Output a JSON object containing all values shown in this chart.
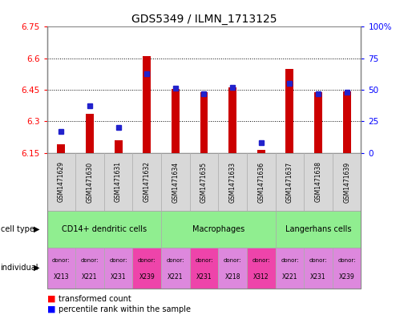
{
  "title": "GDS5349 / ILMN_1713125",
  "samples": [
    "GSM1471629",
    "GSM1471630",
    "GSM1471631",
    "GSM1471632",
    "GSM1471634",
    "GSM1471635",
    "GSM1471633",
    "GSM1471636",
    "GSM1471637",
    "GSM1471638",
    "GSM1471639"
  ],
  "transformed_count": [
    6.19,
    6.335,
    6.21,
    6.61,
    6.455,
    6.44,
    6.462,
    6.163,
    6.548,
    6.44,
    6.444
  ],
  "percentile_rank": [
    17,
    37,
    20,
    63,
    51,
    47,
    52,
    8,
    55,
    47,
    48
  ],
  "ylim_left": [
    6.15,
    6.75
  ],
  "ylim_right": [
    0,
    100
  ],
  "yticks_left": [
    6.15,
    6.3,
    6.45,
    6.6,
    6.75
  ],
  "yticks_right": [
    0,
    25,
    50,
    75,
    100
  ],
  "ytick_labels_left": [
    "6.15",
    "6.3",
    "6.45",
    "6.6",
    "6.75"
  ],
  "ytick_labels_right": [
    "0",
    "25",
    "50",
    "75",
    "100%"
  ],
  "bar_color_red": "#cc0000",
  "bar_color_blue": "#2222cc",
  "bar_width": 0.28,
  "individual_colors": [
    "#dd88dd",
    "#dd88dd",
    "#dd88dd",
    "#ee44aa",
    "#dd88dd",
    "#ee44aa",
    "#dd88dd",
    "#ee44aa",
    "#dd88dd",
    "#dd88dd",
    "#dd88dd"
  ],
  "cell_type_groups": [
    {
      "label": "CD14+ dendritic cells",
      "cols": [
        0,
        1,
        2,
        3
      ]
    },
    {
      "label": "Macrophages",
      "cols": [
        4,
        5,
        6,
        7
      ]
    },
    {
      "label": "Langerhans cells",
      "cols": [
        8,
        9,
        10
      ]
    }
  ],
  "donors": [
    "X213",
    "X221",
    "X231",
    "X239",
    "X221",
    "X231",
    "X218",
    "X312",
    "X221",
    "X231",
    "X239"
  ]
}
